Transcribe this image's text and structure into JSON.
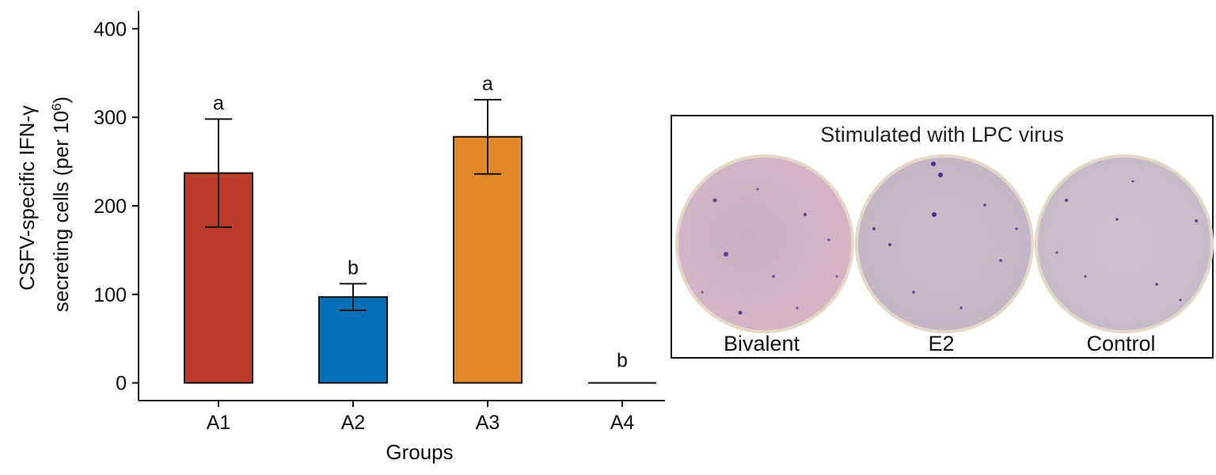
{
  "chart_data": {
    "type": "bar",
    "categories": [
      "A1",
      "A2",
      "A3",
      "A4"
    ],
    "values": [
      237,
      97,
      278,
      0
    ],
    "errors": [
      61,
      15,
      42,
      0
    ],
    "significance": [
      "a",
      "b",
      "a",
      "b"
    ],
    "colors": [
      "#b93b28",
      "#0470b8",
      "#e0872a",
      "#000000"
    ],
    "xlabel": "Groups",
    "ylabel_line1": "CSFV-specific IFN-γ",
    "ylabel_line2_main": "secreting cells (per 10",
    "ylabel_line2_sup": "6",
    "ylabel_line2_end": ")",
    "yticks": [
      0,
      100,
      200,
      300,
      400
    ],
    "ylim": [
      -20,
      420
    ]
  },
  "inset": {
    "title": "Stimulated with LPC virus",
    "wells": [
      {
        "label": "Bivalent",
        "spot_color": "#5b3f95"
      },
      {
        "label": "E2",
        "spot_color": "#5b3f95"
      },
      {
        "label": "Control",
        "spot_color": "#5b3f95"
      }
    ]
  }
}
